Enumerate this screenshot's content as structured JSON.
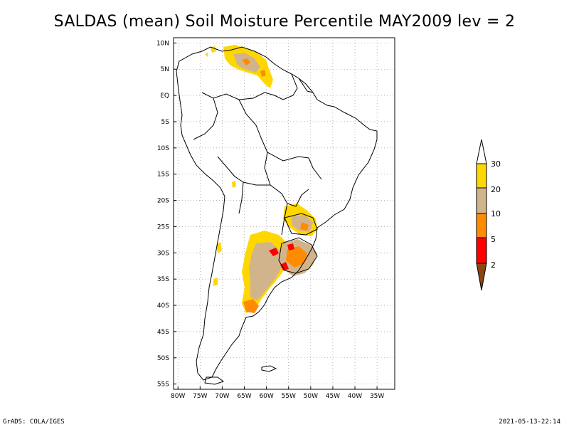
{
  "title": "SALDAS (mean) Soil Moisture Percentile MAY2009 lev = 2",
  "footer": {
    "left": "GrADS: COLA/IGES",
    "right": "2021-05-13-22:14"
  },
  "map": {
    "region": "South America",
    "lon_range": [
      -81,
      -31
    ],
    "lat_range": [
      -56,
      11
    ],
    "lon_ticks": [
      {
        "value": -80,
        "label": "80W"
      },
      {
        "value": -75,
        "label": "75W"
      },
      {
        "value": -70,
        "label": "70W"
      },
      {
        "value": -65,
        "label": "65W"
      },
      {
        "value": -60,
        "label": "60W"
      },
      {
        "value": -55,
        "label": "55W"
      },
      {
        "value": -50,
        "label": "50W"
      },
      {
        "value": -45,
        "label": "45W"
      },
      {
        "value": -40,
        "label": "40W"
      },
      {
        "value": -35,
        "label": "35W"
      }
    ],
    "lat_ticks": [
      {
        "value": 10,
        "label": "10N"
      },
      {
        "value": 5,
        "label": "5N"
      },
      {
        "value": 0,
        "label": "EQ"
      },
      {
        "value": -5,
        "label": "5S"
      },
      {
        "value": -10,
        "label": "10S"
      },
      {
        "value": -15,
        "label": "15S"
      },
      {
        "value": -20,
        "label": "20S"
      },
      {
        "value": -25,
        "label": "25S"
      },
      {
        "value": -30,
        "label": "30S"
      },
      {
        "value": -35,
        "label": "35S"
      },
      {
        "value": -40,
        "label": "40S"
      },
      {
        "value": -45,
        "label": "45S"
      },
      {
        "value": -50,
        "label": "50S"
      },
      {
        "value": -55,
        "label": "55S"
      }
    ]
  },
  "colorbar": {
    "levels": [
      "2",
      "5",
      "10",
      "20",
      "30"
    ],
    "colors": {
      "below_2": "#8b4513",
      "2_5": "#ff0000",
      "5_10": "#ff8c00",
      "10_20": "#d2b48c",
      "20_30": "#ffd700",
      "above_30": "#ffffff"
    }
  },
  "anomaly_patches": [
    {
      "region": "Venezuela / Colombia north",
      "category": "20_30"
    },
    {
      "region": "Venezuela interior",
      "category": "10_20"
    },
    {
      "region": "Southern Brazil / Parana",
      "category": "10_20"
    },
    {
      "region": "Rio Grande do Sul / Uruguay",
      "category": "5_10"
    },
    {
      "region": "Northern Argentina",
      "category": "20_30"
    },
    {
      "region": "Entre Rios / Corrientes",
      "category": "2_5"
    },
    {
      "region": "Central Argentina pampas",
      "category": "10_20"
    },
    {
      "region": "Patagonia north",
      "category": "5_10"
    }
  ]
}
